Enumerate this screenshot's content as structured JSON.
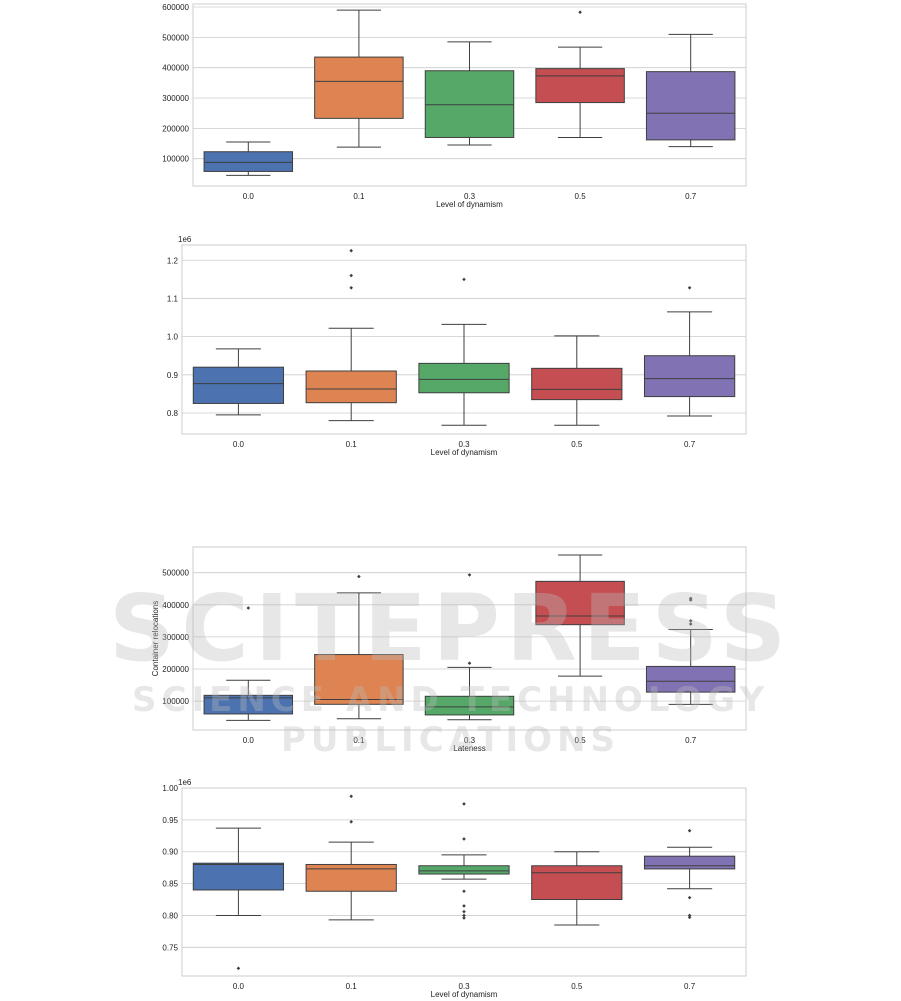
{
  "chart_data": [
    {
      "type": "box",
      "xlabel": "Level of dynamism",
      "ylabel": "",
      "offset_label": "",
      "ylim": [
        10000,
        610000
      ],
      "yticks": [
        100000,
        200000,
        300000,
        400000,
        500000,
        600000
      ],
      "ytick_labels": [
        "100000",
        "200000",
        "300000",
        "400000",
        "500000",
        "600000"
      ],
      "grid": true,
      "categories": [
        "0.0",
        "0.1",
        "0.3",
        "0.5",
        "0.7"
      ],
      "colors": [
        "#4c72b0",
        "#dd8452",
        "#55a868",
        "#c44e52",
        "#8172b3"
      ],
      "boxes": [
        {
          "whislo": 45000,
          "q1": 58000,
          "med": 88000,
          "q3": 123000,
          "whishi": 155000,
          "fliers": []
        },
        {
          "whislo": 138000,
          "q1": 233000,
          "med": 355000,
          "q3": 435000,
          "whishi": 590000,
          "fliers": []
        },
        {
          "whislo": 145000,
          "q1": 170000,
          "med": 278000,
          "q3": 390000,
          "whishi": 485000,
          "fliers": []
        },
        {
          "whislo": 170000,
          "q1": 285000,
          "med": 373000,
          "q3": 397000,
          "whishi": 468000,
          "fliers": [
            583000
          ]
        },
        {
          "whislo": 140000,
          "q1": 162000,
          "med": 250000,
          "q3": 387000,
          "whishi": 510000,
          "fliers": []
        }
      ]
    },
    {
      "type": "box",
      "xlabel": "Level of dynamism",
      "ylabel": "",
      "offset_label": "1e6",
      "ylim": [
        0.745,
        1.24
      ],
      "yticks": [
        0.8,
        0.9,
        1.0,
        1.1,
        1.2
      ],
      "ytick_labels": [
        "0.8",
        "0.9",
        "1.0",
        "1.1",
        "1.2"
      ],
      "grid": true,
      "categories": [
        "0.0",
        "0.1",
        "0.3",
        "0.5",
        "0.7"
      ],
      "colors": [
        "#4c72b0",
        "#dd8452",
        "#55a868",
        "#c44e52",
        "#8172b3"
      ],
      "boxes": [
        {
          "whislo": 0.795,
          "q1": 0.825,
          "med": 0.877,
          "q3": 0.92,
          "whishi": 0.968,
          "fliers": []
        },
        {
          "whislo": 0.78,
          "q1": 0.827,
          "med": 0.863,
          "q3": 0.91,
          "whishi": 1.022,
          "fliers": [
            1.128,
            1.16,
            1.225
          ]
        },
        {
          "whislo": 0.768,
          "q1": 0.853,
          "med": 0.888,
          "q3": 0.93,
          "whishi": 1.032,
          "fliers": [
            1.15
          ]
        },
        {
          "whislo": 0.768,
          "q1": 0.835,
          "med": 0.862,
          "q3": 0.917,
          "whishi": 1.002,
          "fliers": []
        },
        {
          "whislo": 0.792,
          "q1": 0.843,
          "med": 0.89,
          "q3": 0.95,
          "whishi": 1.065,
          "fliers": [
            1.128
          ]
        }
      ]
    },
    {
      "type": "box",
      "xlabel": "Lateness",
      "ylabel": "Container relocations",
      "offset_label": "",
      "ylim": [
        10000,
        580000
      ],
      "yticks": [
        100000,
        200000,
        300000,
        400000,
        500000
      ],
      "ytick_labels": [
        "100000",
        "200000",
        "300000",
        "400000",
        "500000"
      ],
      "grid": true,
      "categories": [
        "0.0",
        "0.1",
        "0.3",
        "0.5",
        "0.7"
      ],
      "colors": [
        "#4c72b0",
        "#dd8452",
        "#55a868",
        "#c44e52",
        "#8172b3"
      ],
      "boxes": [
        {
          "whislo": 40000,
          "q1": 60000,
          "med": 110000,
          "q3": 118000,
          "whishi": 165000,
          "fliers": [
            390000
          ]
        },
        {
          "whislo": 45000,
          "q1": 90000,
          "med": 105000,
          "q3": 245000,
          "whishi": 437000,
          "fliers": [
            488000
          ]
        },
        {
          "whislo": 42000,
          "q1": 57000,
          "med": 82000,
          "q3": 115000,
          "whishi": 205000,
          "fliers": [
            218000,
            493000
          ]
        },
        {
          "whislo": 178000,
          "q1": 338000,
          "med": 365000,
          "q3": 473000,
          "whishi": 555000,
          "fliers": []
        },
        {
          "whislo": 90000,
          "q1": 128000,
          "med": 162000,
          "q3": 208000,
          "whishi": 323000,
          "fliers": [
            340000,
            350000,
            415000,
            420000
          ]
        }
      ]
    },
    {
      "type": "box",
      "xlabel": "Level of dynamism",
      "ylabel": "",
      "offset_label": "1e6",
      "ylim": [
        0.705,
        1.0
      ],
      "yticks": [
        0.75,
        0.8,
        0.85,
        0.9,
        0.95,
        1.0
      ],
      "ytick_labels": [
        "0.75",
        "0.80",
        "0.85",
        "0.90",
        "0.95",
        "1.00"
      ],
      "grid": true,
      "categories": [
        "0.0",
        "0.1",
        "0.3",
        "0.5",
        "0.7"
      ],
      "colors": [
        "#4c72b0",
        "#dd8452",
        "#55a868",
        "#c44e52",
        "#8172b3"
      ],
      "boxes": [
        {
          "whislo": 0.8,
          "q1": 0.84,
          "med": 0.88,
          "q3": 0.882,
          "whishi": 0.937,
          "fliers": [
            0.717
          ]
        },
        {
          "whislo": 0.793,
          "q1": 0.838,
          "med": 0.873,
          "q3": 0.88,
          "whishi": 0.915,
          "fliers": [
            0.947,
            0.987
          ]
        },
        {
          "whislo": 0.857,
          "q1": 0.865,
          "med": 0.87,
          "q3": 0.878,
          "whishi": 0.895,
          "fliers": [
            0.975,
            0.92,
            0.838,
            0.815,
            0.806,
            0.8,
            0.796
          ]
        },
        {
          "whislo": 0.785,
          "q1": 0.825,
          "med": 0.867,
          "q3": 0.878,
          "whishi": 0.9,
          "fliers": []
        },
        {
          "whislo": 0.842,
          "q1": 0.873,
          "med": 0.878,
          "q3": 0.893,
          "whishi": 0.907,
          "fliers": [
            0.933,
            0.828,
            0.8,
            0.797
          ]
        }
      ]
    }
  ],
  "watermark": {
    "main": "SCITEPRESS",
    "sub": "SCIENCE AND TECHNOLOGY PUBLICATIONS"
  }
}
